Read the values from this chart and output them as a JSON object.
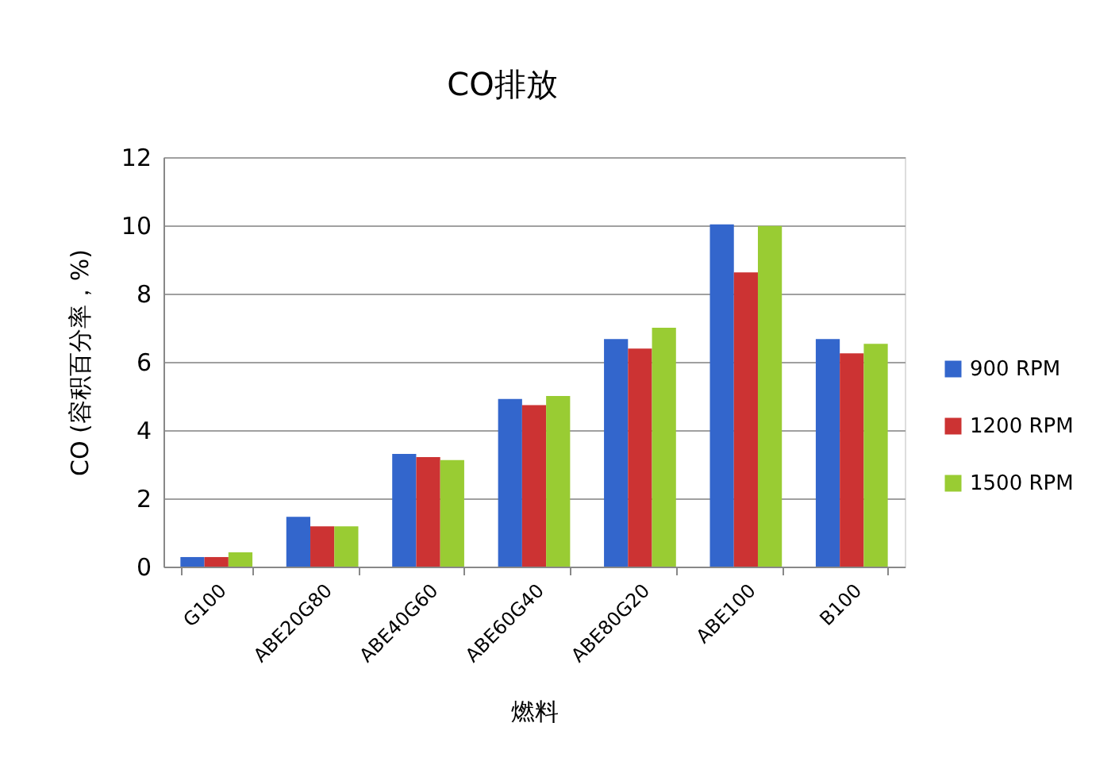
{
  "chart_data": {
    "type": "bar",
    "title": "CO排放",
    "xlabel": "燃料",
    "ylabel": "CO (容积百分率，%)",
    "categories": [
      "G100",
      "ABE20G80",
      "ABE40G60",
      "ABE60G40",
      "ABE80G20",
      "ABE100",
      "B100"
    ],
    "series": [
      {
        "name": "900 RPM",
        "color": "#3366cc",
        "values": [
          0.28,
          1.46,
          3.3,
          4.91,
          6.67,
          10.03,
          6.67
        ]
      },
      {
        "name": "1200 RPM",
        "color": "#cc3333",
        "values": [
          0.28,
          1.18,
          3.21,
          4.73,
          6.39,
          8.62,
          6.25
        ]
      },
      {
        "name": "1500 RPM",
        "color": "#99cc33",
        "values": [
          0.42,
          1.18,
          3.12,
          5.0,
          7.0,
          9.98,
          6.53
        ]
      }
    ],
    "ylim": [
      0,
      12
    ],
    "yticks": [
      0,
      2,
      4,
      6,
      8,
      10,
      12
    ],
    "grid": "y",
    "legend": "right"
  }
}
